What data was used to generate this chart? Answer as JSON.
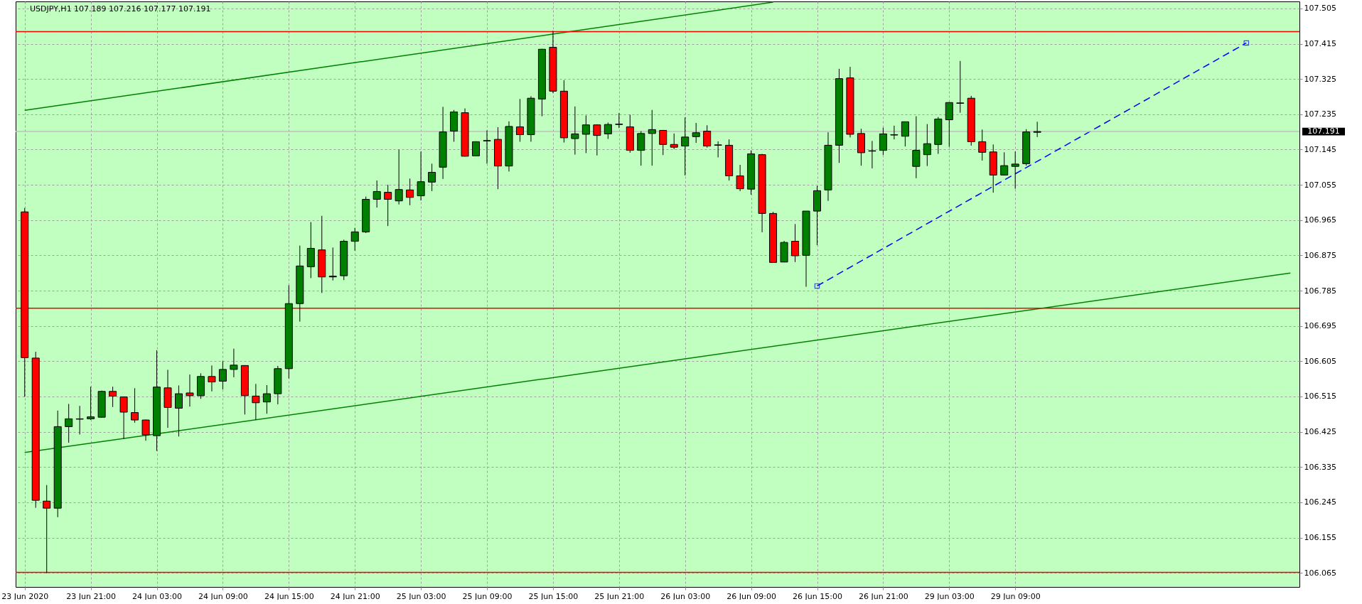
{
  "chart_data": {
    "type": "candlestick",
    "title": "USDJPY,H1  107.189 107.216 107.177 107.191",
    "categories": [
      "23 Jun 2020",
      null,
      null,
      null,
      null,
      null,
      "23 Jun 21:00",
      null,
      null,
      null,
      null,
      null,
      "24 Jun 03:00",
      null,
      null,
      null,
      null,
      null,
      "24 Jun 09:00",
      null,
      null,
      null,
      null,
      null,
      "24 Jun 15:00",
      null,
      null,
      null,
      null,
      null,
      "24 Jun 21:00",
      null,
      null,
      null,
      null,
      null,
      "25 Jun 03:00",
      null,
      null,
      null,
      null,
      null,
      "25 Jun 09:00",
      null,
      null,
      null,
      null,
      null,
      "25 Jun 15:00",
      null,
      null,
      null,
      null,
      null,
      "25 Jun 21:00",
      null,
      null,
      null,
      null,
      null,
      "26 Jun 03:00",
      null,
      null,
      null,
      null,
      null,
      "26 Jun 09:00",
      null,
      null,
      null,
      null,
      null,
      "26 Jun 15:00",
      null,
      null,
      null,
      null,
      null,
      "26 Jun 21:00",
      null,
      null,
      null,
      null,
      null,
      "29 Jun 03:00",
      null,
      null,
      null,
      null,
      null,
      "29 Jun 09:00",
      null,
      null,
      null,
      null,
      null,
      null,
      null,
      null,
      null,
      null,
      null,
      null,
      null,
      null,
      null,
      null,
      null,
      null,
      null,
      null,
      null,
      null,
      null,
      null,
      null
    ],
    "ohlc": [
      [
        106.986,
        106.996,
        106.514,
        106.614
      ],
      [
        106.613,
        106.629,
        106.231,
        106.25
      ],
      [
        106.248,
        106.289,
        106.064,
        106.23
      ],
      [
        106.23,
        106.479,
        106.207,
        106.438
      ],
      [
        106.438,
        106.496,
        106.397,
        106.458
      ],
      [
        106.457,
        106.491,
        106.418,
        106.458
      ],
      [
        106.458,
        106.54,
        106.455,
        106.463
      ],
      [
        106.462,
        106.53,
        106.461,
        106.528
      ],
      [
        106.528,
        106.54,
        106.488,
        106.516
      ],
      [
        106.514,
        106.515,
        106.407,
        106.475
      ],
      [
        106.474,
        106.536,
        106.448,
        106.455
      ],
      [
        106.455,
        106.456,
        106.402,
        106.417
      ],
      [
        106.415,
        106.633,
        106.376,
        106.539
      ],
      [
        106.537,
        106.583,
        106.435,
        106.487
      ],
      [
        106.485,
        106.543,
        106.413,
        106.522
      ],
      [
        106.524,
        106.571,
        106.489,
        106.517
      ],
      [
        106.517,
        106.574,
        106.509,
        106.566
      ],
      [
        106.566,
        106.594,
        106.528,
        106.552
      ],
      [
        106.554,
        106.605,
        106.533,
        106.584
      ],
      [
        106.584,
        106.637,
        106.564,
        106.595
      ],
      [
        106.594,
        106.594,
        106.469,
        106.517
      ],
      [
        106.516,
        106.547,
        106.455,
        106.499
      ],
      [
        106.501,
        106.544,
        106.471,
        106.522
      ],
      [
        106.522,
        106.593,
        106.495,
        106.586
      ],
      [
        106.586,
        106.799,
        106.561,
        106.752
      ],
      [
        106.752,
        106.9,
        106.706,
        106.848
      ],
      [
        106.846,
        106.96,
        106.817,
        106.893
      ],
      [
        106.889,
        106.976,
        106.779,
        106.82
      ],
      [
        106.82,
        106.895,
        106.811,
        106.822
      ],
      [
        106.823,
        106.915,
        106.812,
        106.911
      ],
      [
        106.911,
        106.945,
        106.887,
        106.935
      ],
      [
        106.935,
        107.025,
        106.932,
        107.018
      ],
      [
        107.018,
        107.066,
        106.997,
        107.038
      ],
      [
        107.036,
        107.055,
        106.95,
        107.018
      ],
      [
        107.014,
        107.145,
        107.005,
        107.043
      ],
      [
        107.042,
        107.071,
        107.003,
        107.023
      ],
      [
        107.027,
        107.14,
        107.015,
        107.063
      ],
      [
        107.062,
        107.109,
        107.039,
        107.087
      ],
      [
        107.1,
        107.254,
        107.07,
        107.19
      ],
      [
        107.192,
        107.246,
        107.165,
        107.241
      ],
      [
        107.239,
        107.25,
        107.127,
        107.128
      ],
      [
        107.129,
        107.166,
        107.128,
        107.165
      ],
      [
        107.167,
        107.194,
        107.109,
        107.168
      ],
      [
        107.171,
        107.202,
        107.044,
        107.103
      ],
      [
        107.103,
        107.217,
        107.089,
        107.204
      ],
      [
        107.203,
        107.274,
        107.165,
        107.183
      ],
      [
        107.183,
        107.281,
        107.165,
        107.276
      ],
      [
        107.274,
        107.402,
        107.23,
        107.401
      ],
      [
        107.406,
        107.448,
        107.289,
        107.294
      ],
      [
        107.294,
        107.322,
        107.163,
        107.175
      ],
      [
        107.173,
        107.255,
        107.132,
        107.185
      ],
      [
        107.184,
        107.232,
        107.136,
        107.208
      ],
      [
        107.208,
        107.209,
        107.13,
        107.181
      ],
      [
        107.185,
        107.214,
        107.172,
        107.209
      ],
      [
        107.209,
        107.238,
        107.2,
        107.21
      ],
      [
        107.203,
        107.234,
        107.137,
        107.143
      ],
      [
        107.143,
        107.192,
        107.104,
        107.186
      ],
      [
        107.186,
        107.246,
        107.104,
        107.196
      ],
      [
        107.194,
        107.195,
        107.131,
        107.158
      ],
      [
        107.158,
        107.186,
        107.146,
        107.151
      ],
      [
        107.154,
        107.227,
        107.079,
        107.177
      ],
      [
        107.178,
        107.213,
        107.162,
        107.188
      ],
      [
        107.192,
        107.207,
        107.15,
        107.154
      ],
      [
        107.157,
        107.166,
        107.125,
        107.156
      ],
      [
        107.156,
        107.171,
        107.066,
        107.078
      ],
      [
        107.078,
        107.106,
        107.039,
        107.045
      ],
      [
        107.044,
        107.143,
        107.03,
        107.134
      ],
      [
        107.132,
        107.134,
        106.934,
        106.982
      ],
      [
        106.982,
        106.986,
        106.857,
        106.857
      ],
      [
        106.858,
        106.912,
        106.858,
        106.908
      ],
      [
        106.911,
        106.955,
        106.858,
        106.874
      ],
      [
        106.875,
        106.988,
        106.795,
        106.988
      ],
      [
        106.988,
        107.052,
        106.901,
        107.04
      ],
      [
        107.042,
        107.189,
        107.014,
        107.156
      ],
      [
        107.156,
        107.351,
        107.111,
        107.326
      ],
      [
        107.328,
        107.356,
        107.176,
        107.184
      ],
      [
        107.186,
        107.198,
        107.104,
        107.137
      ],
      [
        107.141,
        107.167,
        107.097,
        107.142
      ],
      [
        107.143,
        107.201,
        107.131,
        107.185
      ],
      [
        107.182,
        107.206,
        107.171,
        107.183
      ],
      [
        107.179,
        107.216,
        107.153,
        107.216
      ],
      [
        107.102,
        107.23,
        107.072,
        107.143
      ],
      [
        107.132,
        107.21,
        107.103,
        107.16
      ],
      [
        107.158,
        107.228,
        107.134,
        107.223
      ],
      [
        107.221,
        107.266,
        107.152,
        107.265
      ],
      [
        107.263,
        107.371,
        107.239,
        107.264
      ],
      [
        107.276,
        107.282,
        107.155,
        107.165
      ],
      [
        107.165,
        107.196,
        107.117,
        107.138
      ],
      [
        107.139,
        107.158,
        107.035,
        107.08
      ],
      [
        107.08,
        107.138,
        107.079,
        107.104
      ],
      [
        107.102,
        107.14,
        107.045,
        107.108
      ],
      [
        107.109,
        107.197,
        107.104,
        107.19
      ],
      [
        107.189,
        107.216,
        107.177,
        107.191
      ],
      null,
      null,
      null,
      null,
      null,
      null,
      null,
      null,
      null,
      null,
      null,
      null,
      null,
      null,
      null,
      null,
      null,
      null,
      null,
      null,
      null,
      null,
      null
    ],
    "series": [
      {
        "type": "line",
        "color": "#008000",
        "values": [
          107.245,
          null,
          null,
          null,
          null,
          null,
          null,
          null,
          null,
          null,
          null,
          null,
          null,
          null,
          null,
          null,
          null,
          null,
          null,
          null,
          null,
          null,
          null,
          null,
          null,
          null,
          null,
          null,
          null,
          null,
          null,
          null,
          null,
          null,
          null,
          null,
          null,
          null,
          null,
          null,
          null,
          null,
          null,
          null,
          null,
          null,
          null,
          null,
          null,
          null,
          null,
          null,
          null,
          null,
          null,
          null,
          null,
          null,
          null,
          null,
          null,
          null,
          null,
          null,
          null,
          null,
          null,
          null,
          107.521,
          null,
          null,
          null,
          null,
          null,
          null,
          null,
          null,
          null,
          null,
          null,
          null,
          null,
          null,
          null,
          null,
          null,
          null,
          null,
          null,
          null,
          null,
          null,
          null,
          null,
          null,
          null,
          null,
          null,
          null,
          null,
          null,
          null,
          null,
          null,
          null,
          null,
          null,
          null,
          null,
          null,
          null,
          null,
          null,
          null,
          null,
          null
        ]
      },
      {
        "type": "line",
        "color": "#008000",
        "values": [
          106.372,
          null,
          null,
          null,
          null,
          null,
          null,
          null,
          null,
          null,
          null,
          null,
          null,
          null,
          null,
          null,
          null,
          null,
          null,
          null,
          null,
          null,
          null,
          null,
          null,
          null,
          null,
          null,
          null,
          null,
          null,
          null,
          null,
          null,
          null,
          null,
          null,
          null,
          null,
          null,
          null,
          null,
          null,
          null,
          null,
          null,
          null,
          null,
          null,
          null,
          null,
          null,
          null,
          null,
          null,
          null,
          null,
          null,
          null,
          null,
          null,
          null,
          null,
          null,
          null,
          null,
          null,
          null,
          null,
          null,
          null,
          null,
          null,
          null,
          null,
          null,
          null,
          null,
          null,
          null,
          null,
          null,
          null,
          null,
          null,
          null,
          null,
          null,
          null,
          null,
          null,
          null,
          null,
          null,
          null,
          null,
          null,
          null,
          null,
          null,
          null,
          null,
          null,
          null,
          null,
          null,
          null,
          null,
          null,
          null,
          null,
          null,
          null,
          null,
          null,
          106.83
        ]
      },
      {
        "type": "line",
        "color": "#0000ff",
        "line_style": "dashed",
        "marker": "square",
        "values": [
          null,
          null,
          null,
          null,
          null,
          null,
          null,
          null,
          null,
          null,
          null,
          null,
          null,
          null,
          null,
          null,
          null,
          null,
          null,
          null,
          null,
          null,
          null,
          null,
          null,
          null,
          null,
          null,
          null,
          null,
          null,
          null,
          null,
          null,
          null,
          null,
          null,
          null,
          null,
          null,
          null,
          null,
          null,
          null,
          null,
          null,
          null,
          null,
          null,
          null,
          null,
          null,
          null,
          null,
          null,
          null,
          null,
          null,
          null,
          null,
          null,
          null,
          null,
          null,
          null,
          null,
          null,
          null,
          null,
          null,
          null,
          null,
          106.797,
          null,
          null,
          null,
          null,
          null,
          null,
          null,
          null,
          null,
          null,
          null,
          null,
          null,
          null,
          null,
          null,
          null,
          null,
          null,
          null,
          null,
          null,
          null,
          null,
          null,
          null,
          null,
          null,
          null,
          null,
          null,
          null,
          null,
          null,
          null,
          null,
          null,
          null,
          107.417,
          null,
          null,
          null,
          null
        ]
      }
    ],
    "ylim": [
      106.029,
      107.523
    ],
    "yticks": [
      106.065,
      106.155,
      106.245,
      106.335,
      106.425,
      106.515,
      106.605,
      106.695,
      106.785,
      106.875,
      106.965,
      107.055,
      107.145,
      107.235,
      107.325,
      107.415,
      107.505
    ],
    "ref_lines": [
      {
        "axis": "y",
        "value": 107.446,
        "color": "#ff0000"
      },
      {
        "axis": "y",
        "value": 106.74,
        "color": "#ff0000"
      },
      {
        "axis": "y",
        "value": 106.066,
        "color": "#ff0000"
      },
      {
        "axis": "y",
        "value": 107.191,
        "label": "107.191",
        "color": "#c0c0c0"
      }
    ],
    "grid": true
  }
}
